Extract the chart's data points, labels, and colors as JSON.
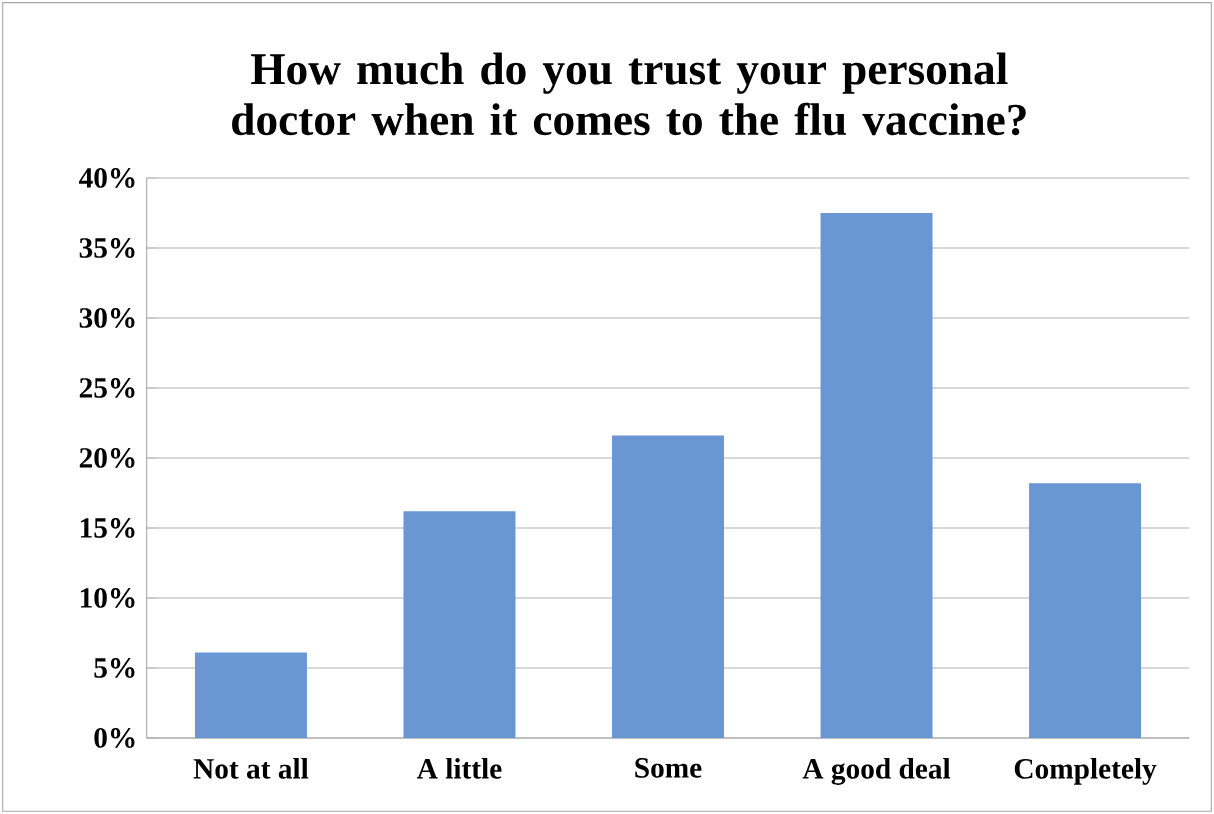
{
  "chart_data": {
    "type": "bar",
    "title": "How much do you trust your personal doctor when it comes to the flu vaccine?",
    "categories": [
      "Not at all",
      "A little",
      "Some",
      "A good deal",
      "Completely"
    ],
    "values": [
      6.1,
      16.2,
      21.6,
      37.5,
      18.2
    ],
    "color": "#6a97d4",
    "ylim": [
      0,
      40
    ],
    "yticks": [
      {
        "value": 0,
        "label": "0%"
      },
      {
        "value": 5,
        "label": "5%"
      },
      {
        "value": 10,
        "label": "10%"
      },
      {
        "value": 15,
        "label": "15%"
      },
      {
        "value": 20,
        "label": "20%"
      },
      {
        "value": 25,
        "label": "25%"
      },
      {
        "value": 30,
        "label": "30%"
      },
      {
        "value": 35,
        "label": "35%"
      },
      {
        "value": 40,
        "label": "40%"
      }
    ],
    "grid": "y"
  }
}
